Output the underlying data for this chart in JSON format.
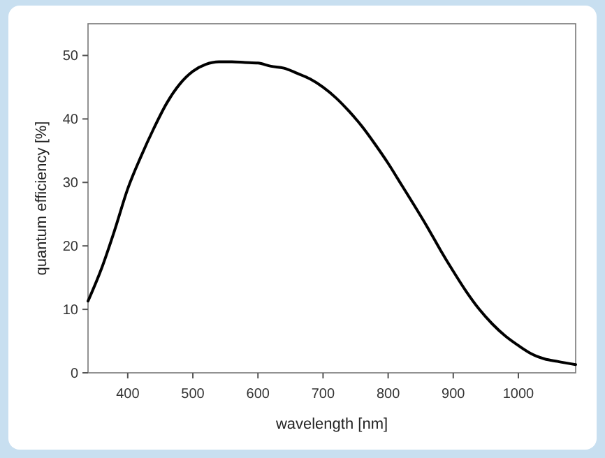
{
  "chart_data": {
    "type": "line",
    "xlabel": "wavelength [nm]",
    "ylabel": "quantum efficiency [%]",
    "xlim": [
      339,
      1088
    ],
    "xticks": [
      400,
      500,
      600,
      700,
      800,
      900,
      1000
    ],
    "ylim": [
      0,
      55
    ],
    "yticks": [
      0,
      10,
      20,
      30,
      40,
      50
    ],
    "grid": false,
    "marker": "none",
    "line_style": "solid",
    "series": [
      {
        "color": "#000000",
        "x": [
          339,
          360,
          380,
          400,
          420,
          440,
          460,
          480,
          500,
          520,
          540,
          560,
          580,
          600,
          620,
          640,
          660,
          680,
          700,
          720,
          740,
          760,
          780,
          800,
          820,
          840,
          860,
          880,
          900,
          920,
          940,
          960,
          980,
          1000,
          1020,
          1040,
          1060,
          1088
        ],
        "values": [
          11.3,
          16.5,
          22.5,
          29,
          34,
          38.5,
          42.5,
          45.5,
          47.5,
          48.6,
          49,
          49,
          48.9,
          48.8,
          48.3,
          48,
          47.2,
          46.3,
          45,
          43.3,
          41.2,
          38.8,
          36,
          33,
          29.7,
          26.4,
          23,
          19.4,
          16,
          12.8,
          10,
          7.7,
          5.8,
          4.3,
          3,
          2.2,
          1.8,
          1.3
        ]
      }
    ]
  }
}
